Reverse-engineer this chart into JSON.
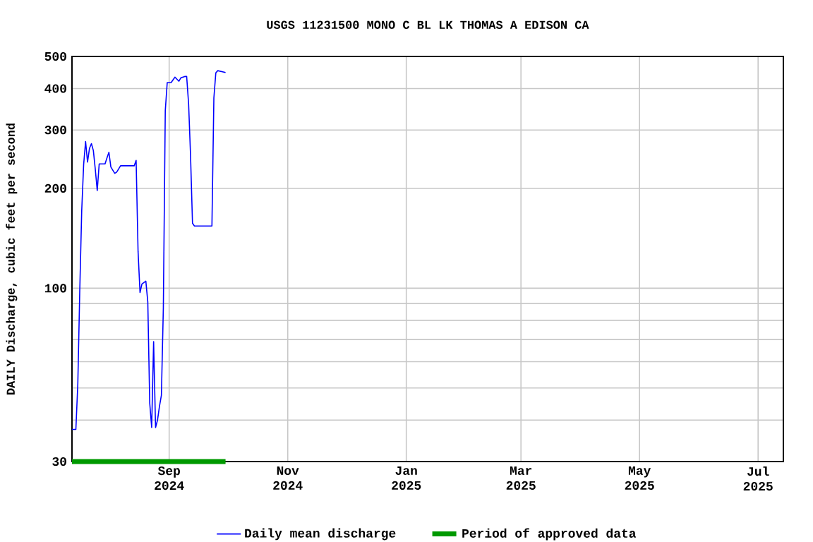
{
  "chart_data": {
    "type": "line",
    "title": "USGS 11231500 MONO C BL LK THOMAS A EDISON CA",
    "ylabel": "DAILY Discharge, cubic feet per second",
    "log": "y",
    "grid": true,
    "legend": "bottom",
    "xlim": [
      "2024-07-13",
      "2025-07-14"
    ],
    "xticks": [
      {
        "value": "2024-09-01",
        "label": "Sep 2024"
      },
      {
        "value": "2024-11-01",
        "label": "Nov 2024"
      },
      {
        "value": "2025-01-01",
        "label": "Jan 2025"
      },
      {
        "value": "2025-03-01",
        "label": "Mar 2025"
      },
      {
        "value": "2025-05-01",
        "label": "May 2025"
      },
      {
        "value": "2025-07-01",
        "label": "Jul 2025"
      }
    ],
    "ylim": [
      30,
      500
    ],
    "yticks": [
      30,
      {
        "value": 40,
        "label": null
      },
      {
        "value": 50,
        "label": null
      },
      {
        "value": 60,
        "label": null
      },
      {
        "value": 70,
        "label": null
      },
      {
        "value": 80,
        "label": null
      },
      {
        "value": 90,
        "label": null
      },
      100,
      200,
      300,
      400,
      500
    ],
    "series": [
      {
        "name": "Daily mean discharge",
        "color": "#0000ff",
        "x": [
          "2024-07-13",
          "2024-07-15",
          "2024-07-16",
          "2024-07-17",
          "2024-07-18",
          "2024-07-19",
          "2024-07-20",
          "2024-07-21",
          "2024-07-22",
          "2024-07-23",
          "2024-07-24",
          "2024-07-25",
          "2024-07-26",
          "2024-07-27",
          "2024-07-30",
          "2024-07-31",
          "2024-08-01",
          "2024-08-02",
          "2024-08-04",
          "2024-08-05",
          "2024-08-07",
          "2024-08-14",
          "2024-08-15",
          "2024-08-16",
          "2024-08-17",
          "2024-08-18",
          "2024-08-20",
          "2024-08-21",
          "2024-08-22",
          "2024-08-23",
          "2024-08-24",
          "2024-08-25",
          "2024-08-26",
          "2024-08-27",
          "2024-08-28",
          "2024-08-29",
          "2024-08-30",
          "2024-08-31",
          "2024-09-02",
          "2024-09-04",
          "2024-09-05",
          "2024-09-06",
          "2024-09-07",
          "2024-09-09",
          "2024-09-10",
          "2024-09-11",
          "2024-09-12",
          "2024-09-13",
          "2024-09-14",
          "2024-09-23",
          "2024-09-24",
          "2024-09-25",
          "2024-09-26",
          "2024-09-28",
          "2024-09-30"
        ],
        "values": [
          37.5,
          37.5,
          51.5,
          98,
          171,
          236,
          277,
          240,
          264,
          273,
          260,
          228,
          197,
          237,
          237,
          247,
          257,
          232,
          222,
          224,
          234,
          234,
          243,
          129,
          97,
          103,
          105,
          91,
          45,
          38,
          69,
          38,
          40,
          44,
          47.5,
          87,
          343,
          417,
          417,
          433,
          427,
          421,
          431,
          435,
          435,
          360,
          251,
          157,
          154,
          154,
          375,
          446,
          453,
          450,
          447
        ]
      },
      {
        "name": "Period of approved data",
        "color": "#009900",
        "x": [
          "2024-07-13",
          "2024-09-30"
        ],
        "values": [
          30,
          30
        ]
      }
    ]
  }
}
